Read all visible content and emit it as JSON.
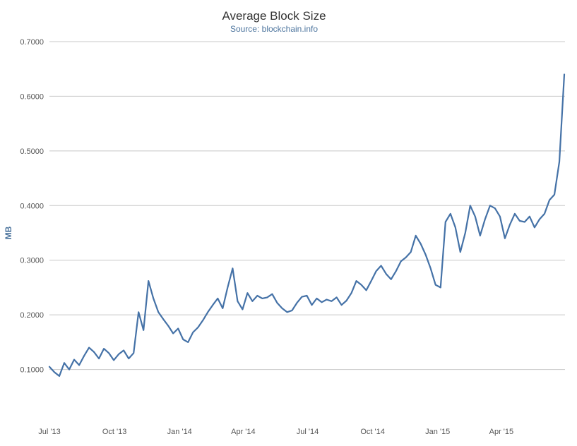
{
  "chart_data": {
    "type": "line",
    "title": "Average Block Size",
    "subtitle": "Source: blockchain.info",
    "xlabel": "",
    "ylabel": "MB",
    "ylim": [
      0,
      0.7
    ],
    "yticks": [
      "0.1000",
      "0.2000",
      "0.3000",
      "0.4000",
      "0.5000",
      "0.6000",
      "0.7000"
    ],
    "xticks": [
      {
        "label": "Jul '13",
        "date": "2013-07-01"
      },
      {
        "label": "Oct '13",
        "date": "2013-10-01"
      },
      {
        "label": "Jan '14",
        "date": "2014-01-01"
      },
      {
        "label": "Apr '14",
        "date": "2014-04-01"
      },
      {
        "label": "Jul '14",
        "date": "2014-07-01"
      },
      {
        "label": "Oct '14",
        "date": "2014-10-01"
      },
      {
        "label": "Jan '15",
        "date": "2015-01-01"
      },
      {
        "label": "Apr '15",
        "date": "2015-04-01"
      }
    ],
    "xrange": [
      "2013-07-01",
      "2015-06-30"
    ],
    "grid": true,
    "legend": "none",
    "color": "#4572a7",
    "series": [
      {
        "name": "",
        "x": [
          "2013-07-01",
          "2013-07-08",
          "2013-07-15",
          "2013-07-22",
          "2013-07-29",
          "2013-08-05",
          "2013-08-12",
          "2013-08-19",
          "2013-08-26",
          "2013-09-02",
          "2013-09-09",
          "2013-09-16",
          "2013-09-23",
          "2013-09-30",
          "2013-10-07",
          "2013-10-14",
          "2013-10-21",
          "2013-10-28",
          "2013-11-04",
          "2013-11-11",
          "2013-11-18",
          "2013-11-25",
          "2013-12-02",
          "2013-12-09",
          "2013-12-16",
          "2013-12-23",
          "2013-12-30",
          "2014-01-06",
          "2014-01-13",
          "2014-01-20",
          "2014-01-27",
          "2014-02-03",
          "2014-02-10",
          "2014-02-17",
          "2014-02-24",
          "2014-03-03",
          "2014-03-10",
          "2014-03-17",
          "2014-03-24",
          "2014-03-31",
          "2014-04-07",
          "2014-04-14",
          "2014-04-21",
          "2014-04-28",
          "2014-05-05",
          "2014-05-12",
          "2014-05-19",
          "2014-05-26",
          "2014-06-02",
          "2014-06-09",
          "2014-06-16",
          "2014-06-23",
          "2014-06-30",
          "2014-07-07",
          "2014-07-14",
          "2014-07-21",
          "2014-07-28",
          "2014-08-04",
          "2014-08-11",
          "2014-08-18",
          "2014-08-25",
          "2014-09-01",
          "2014-09-08",
          "2014-09-15",
          "2014-09-22",
          "2014-09-29",
          "2014-10-06",
          "2014-10-13",
          "2014-10-20",
          "2014-10-27",
          "2014-11-03",
          "2014-11-10",
          "2014-11-17",
          "2014-11-24",
          "2014-12-01",
          "2014-12-08",
          "2014-12-15",
          "2014-12-22",
          "2014-12-29",
          "2015-01-05",
          "2015-01-12",
          "2015-01-19",
          "2015-01-26",
          "2015-02-02",
          "2015-02-09",
          "2015-02-16",
          "2015-02-23",
          "2015-03-02",
          "2015-03-09",
          "2015-03-16",
          "2015-03-23",
          "2015-03-30",
          "2015-04-06",
          "2015-04-13",
          "2015-04-20",
          "2015-04-27",
          "2015-05-04",
          "2015-05-11",
          "2015-05-18",
          "2015-05-25",
          "2015-06-01",
          "2015-06-08",
          "2015-06-15",
          "2015-06-22",
          "2015-06-29"
        ],
        "values": [
          0.105,
          0.095,
          0.088,
          0.112,
          0.1,
          0.118,
          0.108,
          0.125,
          0.14,
          0.132,
          0.12,
          0.138,
          0.13,
          0.117,
          0.128,
          0.135,
          0.12,
          0.13,
          0.205,
          0.172,
          0.262,
          0.23,
          0.205,
          0.192,
          0.18,
          0.166,
          0.175,
          0.155,
          0.15,
          0.168,
          0.177,
          0.19,
          0.205,
          0.218,
          0.23,
          0.212,
          0.25,
          0.285,
          0.225,
          0.21,
          0.24,
          0.225,
          0.235,
          0.23,
          0.232,
          0.238,
          0.222,
          0.212,
          0.205,
          0.208,
          0.222,
          0.233,
          0.235,
          0.218,
          0.23,
          0.223,
          0.228,
          0.225,
          0.232,
          0.218,
          0.226,
          0.24,
          0.262,
          0.255,
          0.245,
          0.262,
          0.28,
          0.29,
          0.275,
          0.265,
          0.28,
          0.298,
          0.305,
          0.315,
          0.345,
          0.33,
          0.31,
          0.285,
          0.255,
          0.25,
          0.37,
          0.385,
          0.36,
          0.315,
          0.35,
          0.4,
          0.38,
          0.345,
          0.375,
          0.4,
          0.395,
          0.38,
          0.34,
          0.365,
          0.385,
          0.372,
          0.37,
          0.38,
          0.36,
          0.375,
          0.385,
          0.41,
          0.42,
          0.48,
          0.64
        ]
      }
    ]
  }
}
